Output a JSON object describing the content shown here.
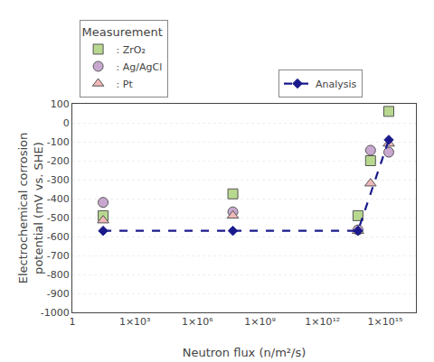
{
  "chart_data": {
    "type": "scatter",
    "xlabel": "Neutron flux (n/m²/s)",
    "ylabel": "Electrochemical corrosion\npotential (mV vs. SHE)",
    "log": "x",
    "xlim": [
      1,
      3e+16
    ],
    "ylim": [
      -1000,
      100
    ],
    "xticks": [
      1,
      {
        "value": 1000,
        "label": "1×10³"
      },
      {
        "value": 1000000,
        "label": "1×10⁶"
      },
      {
        "value": 1000000000.0,
        "label": "1×10⁹"
      },
      {
        "value": 1000000000000.0,
        "label": "1×10¹²"
      },
      {
        "value": 1000000000000000.0,
        "label": "1×10¹⁵"
      }
    ],
    "yticks": [
      -1000,
      -900,
      -800,
      -700,
      -600,
      -500,
      -400,
      -300,
      -200,
      -100,
      0,
      100
    ],
    "grid": "y",
    "legend": "top",
    "legend_title": "Measurement",
    "series": [
      {
        "name": ": ZrO₂",
        "type": "scatter",
        "marker": "square",
        "color": "#b8d890",
        "x": [
          30.0,
          50000000.0,
          50000000000000.0,
          200000000000000.0,
          1500000000000000.0
        ],
        "values": [
          -490,
          -375,
          -490,
          -200,
          60
        ]
      },
      {
        "name": ": Ag/AgCl",
        "type": "scatter",
        "marker": "circle",
        "color": "#c8a8d0",
        "x": [
          30.0,
          50000000.0,
          50000000000000.0,
          200000000000000.0,
          1500000000000000.0
        ],
        "values": [
          -420,
          -470,
          -565,
          -145,
          -155
        ]
      },
      {
        "name": ": Pt",
        "type": "scatter",
        "marker": "triangle-up",
        "color": "#f0b8b8",
        "x": [
          30.0,
          50000000.0,
          50000000000000.0,
          200000000000000.0,
          1500000000000000.0
        ],
        "values": [
          -515,
          -490,
          -570,
          -320,
          -110
        ]
      },
      {
        "name": "Analysis",
        "type": "line",
        "marker": "diamond",
        "line_style": "dash",
        "color": "#1a1a8c",
        "x": [
          30.0,
          50000000.0,
          50000000000000.0,
          1500000000000000.0
        ],
        "values": [
          -570,
          -570,
          -570,
          -90
        ]
      }
    ]
  }
}
